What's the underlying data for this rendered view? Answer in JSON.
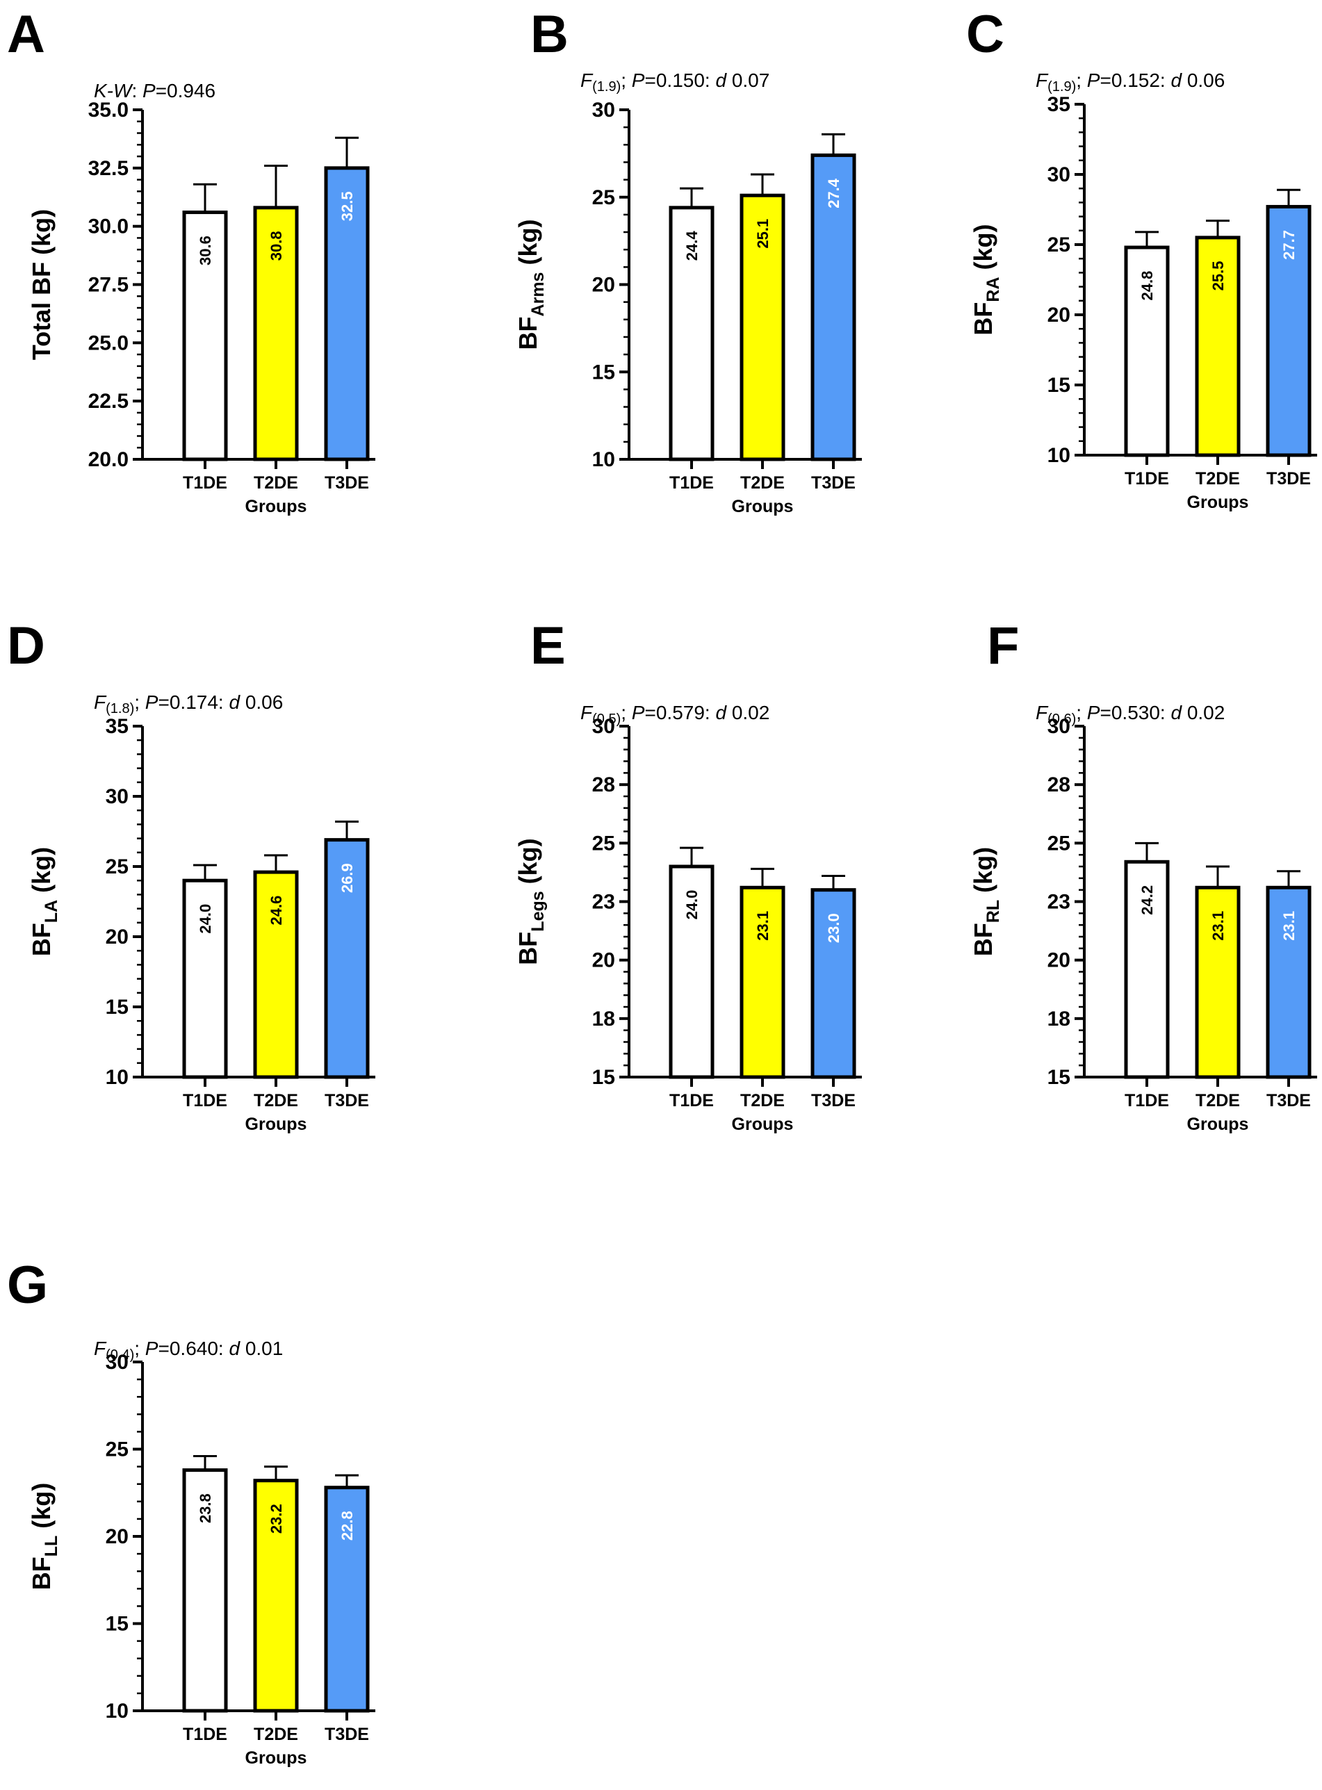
{
  "figure": {
    "bar_colors": [
      "#ffffff",
      "#ffff00",
      "#559bf7"
    ],
    "value_label_colors": [
      "#000000",
      "#000000",
      "#ffffff"
    ],
    "axis_color": "#000000"
  },
  "chart_data": [
    {
      "panel": "A",
      "type": "bar",
      "stat": {
        "test": "K-W",
        "p_label": "P",
        "p_value": "=0.946"
      },
      "ylabel": {
        "main": "Total BF (kg)",
        "sub": ""
      },
      "xlabel": "Groups",
      "categories": [
        "T1DE",
        "T2DE",
        "T3DE"
      ],
      "values": [
        30.6,
        30.8,
        32.5
      ],
      "value_labels": [
        "30.6",
        "30.8",
        "32.5"
      ],
      "error": [
        1.2,
        1.8,
        1.3
      ],
      "ylim": [
        20,
        35
      ],
      "yticks": [
        20.0,
        22.5,
        25.0,
        27.5,
        30.0,
        32.5,
        35.0
      ],
      "ytick_labels": [
        "20.0",
        "22.5",
        "25.0",
        "27.5",
        "30.0",
        "32.5",
        "35.0"
      ],
      "minor_ticks": 4
    },
    {
      "panel": "B",
      "type": "bar",
      "stat": {
        "test": "F",
        "df": "(1.9)",
        "p_label": "P",
        "p_value": "=0.150: ",
        "d_label": "d",
        "d_value": " 0.07"
      },
      "ylabel": {
        "main": "BF",
        "sub": "Arms",
        "unit": " (kg)"
      },
      "xlabel": "Groups",
      "categories": [
        "T1DE",
        "T2DE",
        "T3DE"
      ],
      "values": [
        24.4,
        25.1,
        27.4
      ],
      "value_labels": [
        "24.4",
        "25.1",
        "27.4"
      ],
      "error": [
        1.1,
        1.2,
        1.2
      ],
      "ylim": [
        10,
        30
      ],
      "yticks": [
        10,
        15,
        20,
        25,
        30
      ],
      "ytick_labels": [
        "10",
        "15",
        "20",
        "25",
        "30"
      ],
      "minor_ticks": 4
    },
    {
      "panel": "C",
      "type": "bar",
      "stat": {
        "test": "F",
        "df": "(1.9)",
        "p_label": "P",
        "p_value": "=0.152: ",
        "d_label": "d",
        "d_value": " 0.06"
      },
      "ylabel": {
        "main": "BF",
        "sub": "RA",
        "unit": " (kg)"
      },
      "xlabel": "Groups",
      "categories": [
        "T1DE",
        "T2DE",
        "T3DE"
      ],
      "values": [
        24.8,
        25.5,
        27.7
      ],
      "value_labels": [
        "24.8",
        "25.5",
        "27.7"
      ],
      "error": [
        1.1,
        1.2,
        1.2
      ],
      "ylim": [
        10,
        35
      ],
      "yticks": [
        10,
        15,
        20,
        25,
        30,
        35
      ],
      "ytick_labels": [
        "10",
        "15",
        "20",
        "25",
        "30",
        "35"
      ],
      "minor_ticks": 4
    },
    {
      "panel": "D",
      "type": "bar",
      "stat": {
        "test": "F",
        "df": "(1.8)",
        "p_label": "P",
        "p_value": "=0.174: ",
        "d_label": "d",
        "d_value": " 0.06"
      },
      "ylabel": {
        "main": "BF",
        "sub": "LA",
        "unit": " (kg)"
      },
      "xlabel": "Groups",
      "categories": [
        "T1DE",
        "T2DE",
        "T3DE"
      ],
      "values": [
        24.0,
        24.6,
        26.9
      ],
      "value_labels": [
        "24.0",
        "24.6",
        "26.9"
      ],
      "error": [
        1.1,
        1.2,
        1.3
      ],
      "ylim": [
        10,
        35
      ],
      "yticks": [
        10,
        15,
        20,
        25,
        30,
        35
      ],
      "ytick_labels": [
        "10",
        "15",
        "20",
        "25",
        "30",
        "35"
      ],
      "minor_ticks": 4
    },
    {
      "panel": "E",
      "type": "bar",
      "stat": {
        "test": "F",
        "df": "(0.5)",
        "p_label": "P",
        "p_value": "=0.579: ",
        "d_label": "d",
        "d_value": " 0.02"
      },
      "ylabel": {
        "main": "BF",
        "sub": "Legs",
        "unit": " (kg)"
      },
      "xlabel": "Groups",
      "categories": [
        "T1DE",
        "T2DE",
        "T3DE"
      ],
      "values": [
        24.0,
        23.1,
        23.0
      ],
      "value_labels": [
        "24.0",
        "23.1",
        "23.0"
      ],
      "error": [
        0.8,
        0.8,
        0.6
      ],
      "ylim": [
        15,
        30
      ],
      "yticks": [
        15,
        17.5,
        20,
        22.5,
        25,
        27.5,
        30
      ],
      "ytick_labels": [
        "15",
        "18",
        "20",
        "23",
        "25",
        "28",
        "30"
      ],
      "minor_ticks": 4
    },
    {
      "panel": "F",
      "type": "bar",
      "stat": {
        "test": "F",
        "df": "(0.6)",
        "p_label": "P",
        "p_value": "=0.530: ",
        "d_label": "d",
        "d_value": " 0.02"
      },
      "ylabel": {
        "main": "BF",
        "sub": "RL",
        "unit": " (kg)"
      },
      "xlabel": "Groups",
      "categories": [
        "T1DE",
        "T2DE",
        "T3DE"
      ],
      "values": [
        24.2,
        23.1,
        23.1
      ],
      "value_labels": [
        "24.2",
        "23.1",
        "23.1"
      ],
      "error": [
        0.8,
        0.9,
        0.7
      ],
      "ylim": [
        15,
        30
      ],
      "yticks": [
        15,
        17.5,
        20,
        22.5,
        25,
        27.5,
        30
      ],
      "ytick_labels": [
        "15",
        "18",
        "20",
        "23",
        "25",
        "28",
        "30"
      ],
      "minor_ticks": 4
    },
    {
      "panel": "G",
      "type": "bar",
      "stat": {
        "test": "F",
        "df": "(0.4)",
        "p_label": "P",
        "p_value": "=0.640: ",
        "d_label": "d",
        "d_value": " 0.01"
      },
      "ylabel": {
        "main": "BF",
        "sub": "LL",
        "unit": " (kg)"
      },
      "xlabel": "Groups",
      "categories": [
        "T1DE",
        "T2DE",
        "T3DE"
      ],
      "values": [
        23.8,
        23.2,
        22.8
      ],
      "value_labels": [
        "23.8",
        "23.2",
        "22.8"
      ],
      "error": [
        0.8,
        0.8,
        0.7
      ],
      "ylim": [
        10,
        30
      ],
      "yticks": [
        10,
        15,
        20,
        25,
        30
      ],
      "ytick_labels": [
        "10",
        "15",
        "20",
        "25",
        "30"
      ],
      "minor_ticks": 4
    }
  ]
}
